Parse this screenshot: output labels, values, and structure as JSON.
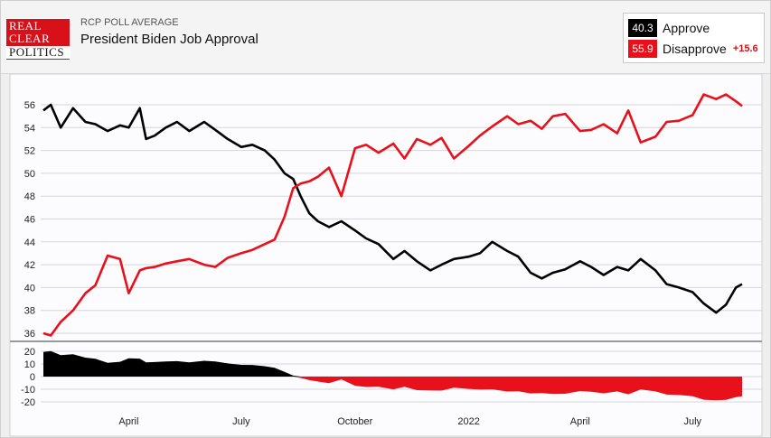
{
  "header": {
    "logo_lines": [
      "REAL",
      "CLEAR",
      "POLITICS"
    ],
    "kicker": "RCP POLL AVERAGE",
    "title": "President Biden Job Approval"
  },
  "legend": {
    "approve": {
      "value": "40.3",
      "label": "Approve",
      "color": "#000000"
    },
    "disapprove": {
      "value": "55.9",
      "label": "Disapprove",
      "color": "#e8101a",
      "spread": "+15.6"
    }
  },
  "colors": {
    "approve": "#000000",
    "disapprove": "#e8101a",
    "plot_bg": "#fcfcfe",
    "grid": "#d6d6dc"
  },
  "chart_data": {
    "type": "line",
    "title": "President Biden Job Approval",
    "x_axis": {
      "range": [
        "2021-01-22",
        "2022-08-10"
      ],
      "tick_labels": [
        {
          "label": "April",
          "date": "2021-04-01"
        },
        {
          "label": "July",
          "date": "2021-07-01"
        },
        {
          "label": "October",
          "date": "2021-10-01"
        },
        {
          "label": "2022",
          "date": "2022-01-01"
        },
        {
          "label": "April",
          "date": "2022-04-01"
        },
        {
          "label": "July",
          "date": "2022-07-01"
        }
      ]
    },
    "main_panel": {
      "ylim": [
        34.5,
        57.5
      ],
      "yticks": [
        36,
        38,
        40,
        42,
        44,
        46,
        48,
        50,
        52,
        54,
        56
      ],
      "grid": true
    },
    "spread_panel": {
      "type": "area",
      "ylim": [
        -22,
        22
      ],
      "yticks": [
        20,
        10,
        0,
        -10,
        -20
      ],
      "grid": true
    },
    "series": [
      {
        "name": "Approve",
        "x": [
          "2021-01-22",
          "2021-01-28",
          "2021-02-05",
          "2021-02-15",
          "2021-02-25",
          "2021-03-05",
          "2021-03-15",
          "2021-03-25",
          "2021-04-01",
          "2021-04-10",
          "2021-04-15",
          "2021-04-22",
          "2021-05-01",
          "2021-05-10",
          "2021-05-20",
          "2021-06-01",
          "2021-06-10",
          "2021-06-20",
          "2021-07-01",
          "2021-07-10",
          "2021-07-20",
          "2021-07-28",
          "2021-08-05",
          "2021-08-12",
          "2021-08-18",
          "2021-08-25",
          "2021-09-01",
          "2021-09-10",
          "2021-09-20",
          "2021-10-01",
          "2021-10-10",
          "2021-10-20",
          "2021-11-01",
          "2021-11-10",
          "2021-11-20",
          "2021-12-01",
          "2021-12-10",
          "2021-12-20",
          "2022-01-01",
          "2022-01-10",
          "2022-01-20",
          "2022-02-01",
          "2022-02-10",
          "2022-02-20",
          "2022-03-01",
          "2022-03-10",
          "2022-03-20",
          "2022-04-01",
          "2022-04-10",
          "2022-04-20",
          "2022-05-01",
          "2022-05-10",
          "2022-05-20",
          "2022-06-01",
          "2022-06-10",
          "2022-06-20",
          "2022-07-01",
          "2022-07-10",
          "2022-07-20",
          "2022-07-28",
          "2022-08-05",
          "2022-08-10"
        ],
        "y": [
          55.5,
          56.0,
          54.0,
          55.7,
          54.5,
          54.3,
          53.7,
          54.2,
          54.0,
          55.7,
          53.0,
          53.3,
          54.0,
          54.5,
          53.7,
          54.5,
          53.8,
          53.0,
          52.3,
          52.5,
          52.0,
          51.2,
          50.0,
          49.5,
          48.0,
          46.5,
          45.8,
          45.3,
          45.8,
          45.0,
          44.3,
          43.8,
          42.5,
          43.2,
          42.3,
          41.5,
          42.0,
          42.5,
          42.7,
          43.0,
          44.0,
          43.2,
          42.7,
          41.3,
          40.8,
          41.3,
          41.6,
          42.3,
          41.8,
          41.1,
          41.8,
          41.5,
          42.5,
          41.5,
          40.3,
          40.0,
          39.6,
          38.6,
          37.8,
          38.5,
          40.0,
          40.3
        ]
      },
      {
        "name": "Disapprove",
        "x": [
          "2021-01-22",
          "2021-01-28",
          "2021-02-05",
          "2021-02-15",
          "2021-02-25",
          "2021-03-05",
          "2021-03-15",
          "2021-03-25",
          "2021-04-01",
          "2021-04-10",
          "2021-04-15",
          "2021-04-22",
          "2021-05-01",
          "2021-05-10",
          "2021-05-20",
          "2021-06-01",
          "2021-06-10",
          "2021-06-20",
          "2021-07-01",
          "2021-07-10",
          "2021-07-20",
          "2021-07-28",
          "2021-08-05",
          "2021-08-12",
          "2021-08-18",
          "2021-08-25",
          "2021-09-01",
          "2021-09-10",
          "2021-09-20",
          "2021-10-01",
          "2021-10-10",
          "2021-10-20",
          "2021-11-01",
          "2021-11-10",
          "2021-11-20",
          "2021-12-01",
          "2021-12-10",
          "2021-12-20",
          "2022-01-01",
          "2022-01-10",
          "2022-01-20",
          "2022-02-01",
          "2022-02-10",
          "2022-02-20",
          "2022-03-01",
          "2022-03-10",
          "2022-03-20",
          "2022-04-01",
          "2022-04-10",
          "2022-04-20",
          "2022-05-01",
          "2022-05-10",
          "2022-05-20",
          "2022-06-01",
          "2022-06-10",
          "2022-06-20",
          "2022-07-01",
          "2022-07-10",
          "2022-07-20",
          "2022-07-28",
          "2022-08-05",
          "2022-08-10"
        ],
        "y": [
          36.0,
          35.8,
          37.0,
          38.0,
          39.5,
          40.2,
          42.8,
          42.5,
          39.5,
          41.5,
          41.7,
          41.8,
          42.1,
          42.3,
          42.5,
          42.0,
          41.8,
          42.6,
          43.0,
          43.3,
          43.8,
          44.2,
          46.2,
          48.7,
          49.1,
          49.3,
          49.7,
          50.5,
          48.0,
          52.2,
          52.5,
          51.8,
          52.6,
          51.3,
          53.0,
          52.5,
          53.1,
          51.3,
          52.4,
          53.3,
          54.1,
          55.0,
          54.3,
          54.6,
          53.9,
          55.0,
          55.2,
          53.7,
          53.8,
          54.3,
          53.5,
          55.5,
          52.7,
          53.2,
          54.5,
          54.6,
          55.1,
          56.9,
          56.5,
          56.9,
          56.3,
          55.9
        ]
      }
    ]
  }
}
